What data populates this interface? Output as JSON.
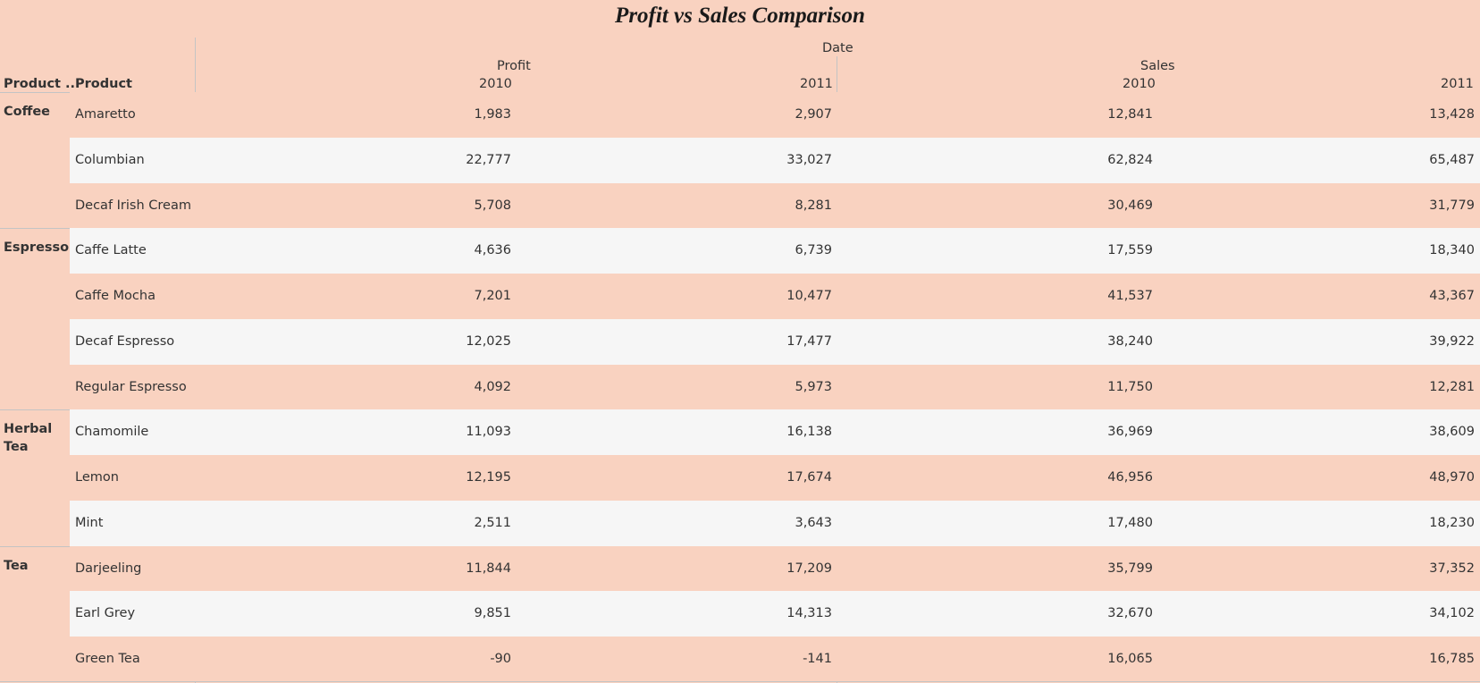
{
  "chart_data": {
    "type": "table",
    "title": "Profit vs Sales Comparison",
    "column_header_top": "Date",
    "row_headers": [
      "Product ..",
      "Product"
    ],
    "measures": [
      "Profit",
      "Sales"
    ],
    "years": [
      "2010",
      "2011"
    ],
    "groups": [
      {
        "category": "Coffee",
        "rows": [
          {
            "product": "Amaretto",
            "values": [
              "1,983",
              "2,907",
              "12,841",
              "13,428"
            ]
          },
          {
            "product": "Columbian",
            "values": [
              "22,777",
              "33,027",
              "62,824",
              "65,487"
            ]
          },
          {
            "product": "Decaf Irish Cream",
            "values": [
              "5,708",
              "8,281",
              "30,469",
              "31,779"
            ]
          }
        ]
      },
      {
        "category": "Espresso",
        "rows": [
          {
            "product": "Caffe Latte",
            "values": [
              "4,636",
              "6,739",
              "17,559",
              "18,340"
            ]
          },
          {
            "product": "Caffe Mocha",
            "values": [
              "7,201",
              "10,477",
              "41,537",
              "43,367"
            ]
          },
          {
            "product": "Decaf Espresso",
            "values": [
              "12,025",
              "17,477",
              "38,240",
              "39,922"
            ]
          },
          {
            "product": "Regular Espresso",
            "values": [
              "4,092",
              "5,973",
              "11,750",
              "12,281"
            ]
          }
        ]
      },
      {
        "category": "Herbal Tea",
        "rows": [
          {
            "product": "Chamomile",
            "values": [
              "11,093",
              "16,138",
              "36,969",
              "38,609"
            ]
          },
          {
            "product": "Lemon",
            "values": [
              "12,195",
              "17,674",
              "46,956",
              "48,970"
            ]
          },
          {
            "product": "Mint",
            "values": [
              "2,511",
              "3,643",
              "17,480",
              "18,230"
            ]
          }
        ]
      },
      {
        "category": "Tea",
        "rows": [
          {
            "product": "Darjeeling",
            "values": [
              "11,844",
              "17,209",
              "35,799",
              "37,352"
            ]
          },
          {
            "product": "Earl Grey",
            "values": [
              "9,851",
              "14,313",
              "32,670",
              "34,102"
            ]
          },
          {
            "product": "Green Tea",
            "values": [
              "-90",
              "-141",
              "16,065",
              "16,785"
            ]
          }
        ]
      }
    ]
  },
  "colors": {
    "background": "#f9d2c0",
    "band_light": "#f6f6f6",
    "gridline": "#c4c4c4"
  }
}
